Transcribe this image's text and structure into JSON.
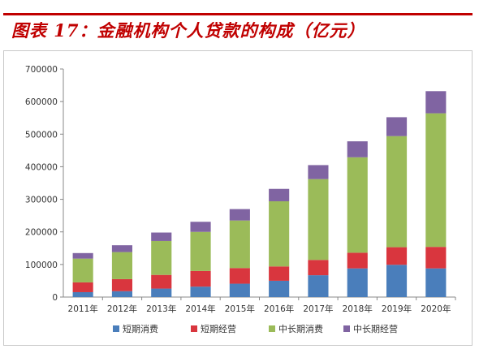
{
  "header": {
    "title": "图表 17：金融机构个人贷款的构成（亿元）"
  },
  "colors": {
    "brand": "#c00000",
    "series": [
      "#4a7ebb",
      "#d9363e",
      "#9bbb59",
      "#8064a2"
    ]
  },
  "chart_data": {
    "type": "bar",
    "stacked": true,
    "title": "",
    "xlabel": "",
    "ylabel": "",
    "ylim": [
      0,
      700000
    ],
    "yticks": [
      0,
      100000,
      200000,
      300000,
      400000,
      500000,
      600000,
      700000
    ],
    "ytick_labels": [
      "0",
      "100000",
      "200000",
      "300000",
      "400000",
      "500000",
      "600000",
      "700000"
    ],
    "grid": false,
    "legend": "bottom",
    "categories": [
      "2011年",
      "2012年",
      "2013年",
      "2014年",
      "2015年",
      "2016年",
      "2017年",
      "2018年",
      "2019年",
      "2020年"
    ],
    "series": [
      {
        "name": "短期消费",
        "values": [
          15000,
          18000,
          26000,
          32000,
          41000,
          50000,
          67000,
          88000,
          99000,
          88000
        ]
      },
      {
        "name": "短期经营",
        "values": [
          30000,
          37000,
          42000,
          48000,
          48000,
          44000,
          47000,
          48000,
          54000,
          66000
        ]
      },
      {
        "name": "中长期消费",
        "values": [
          73000,
          83000,
          104000,
          120000,
          146000,
          200000,
          248000,
          293000,
          341000,
          410000
        ]
      },
      {
        "name": "中长期经营",
        "values": [
          17000,
          21000,
          26000,
          31000,
          35000,
          38000,
          43000,
          49000,
          58000,
          68000
        ]
      }
    ]
  }
}
